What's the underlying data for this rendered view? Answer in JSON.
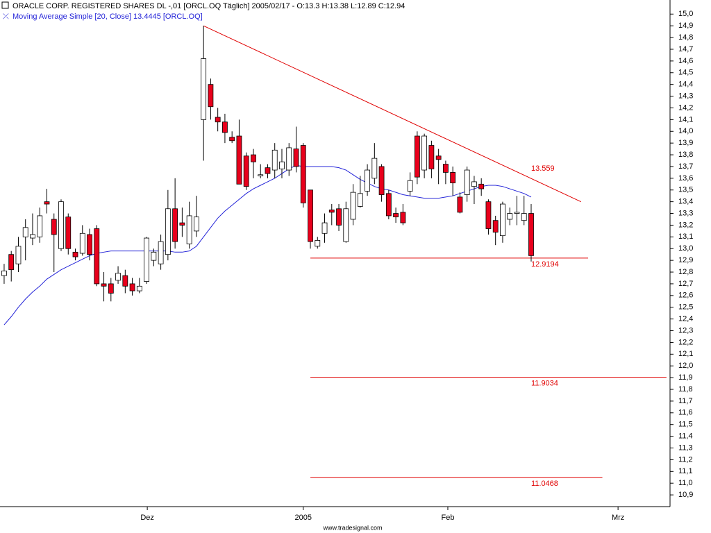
{
  "chart_data": {
    "type": "candlestick",
    "title": "ORACLE CORP. REGISTERED SHARES DL -,01 [ORCL.OQ  Täglich] 2005/02/17 - O:13.3 H:13.38 L:12.89 C:12.94",
    "footer": "www.tradesignal.com",
    "up_color": "#ffffff",
    "down_color": "#e8001c",
    "open": [
      12.77,
      12.95,
      12.87,
      13.1,
      13.09,
      13.1,
      13.4,
      13.25,
      13.0,
      13.27,
      12.97,
      12.96,
      13.12,
      13.17,
      12.7,
      12.7,
      12.73,
      12.77,
      12.7,
      12.64,
      12.72,
      12.9,
      12.87,
      12.95,
      13.34,
      13.22,
      13.04,
      13.15,
      14.1,
      14.4,
      14.12,
      14.08,
      13.95,
      13.96,
      13.79,
      13.8,
      13.62,
      13.69,
      13.67,
      13.68,
      13.67,
      13.85,
      13.88,
      13.5,
      13.02,
      13.13,
      13.33,
      13.34,
      13.06,
      13.25,
      13.36,
      13.49,
      13.6,
      13.7,
      13.47,
      13.3,
      13.31,
      13.49,
      13.96,
      13.67,
      13.88,
      13.79,
      13.72,
      13.65,
      13.44,
      13.46,
      13.53,
      13.55,
      13.4,
      13.24,
      13.11,
      13.25,
      13.3,
      13.24,
      13.3
    ],
    "high": [
      12.87,
      12.98,
      13.1,
      13.25,
      13.3,
      13.35,
      13.51,
      13.3,
      13.42,
      13.3,
      13.0,
      13.2,
      13.17,
      13.2,
      12.8,
      12.75,
      12.85,
      12.82,
      12.75,
      12.75,
      13.1,
      13.0,
      13.12,
      13.5,
      13.6,
      13.35,
      13.4,
      13.45,
      14.9,
      14.45,
      14.2,
      14.15,
      14.0,
      14.1,
      13.82,
      13.85,
      13.72,
      13.72,
      13.9,
      13.85,
      13.9,
      14.04,
      13.9,
      13.5,
      13.1,
      13.3,
      13.38,
      13.38,
      13.4,
      13.55,
      13.62,
      13.72,
      13.9,
      13.72,
      13.5,
      13.35,
      13.38,
      13.65,
      14.0,
      13.98,
      13.92,
      13.85,
      13.75,
      13.7,
      13.48,
      13.7,
      13.62,
      13.6,
      13.42,
      13.28,
      13.4,
      13.35,
      13.45,
      13.45,
      13.38
    ],
    "low": [
      12.7,
      12.72,
      12.8,
      12.9,
      13.03,
      13.05,
      13.3,
      12.8,
      12.98,
      12.95,
      12.9,
      12.94,
      12.9,
      12.68,
      12.55,
      12.55,
      12.7,
      12.62,
      12.6,
      12.62,
      12.7,
      12.85,
      12.82,
      12.9,
      13.0,
      13.1,
      13.0,
      13.1,
      13.75,
      14.1,
      14.0,
      13.9,
      13.9,
      13.55,
      13.5,
      13.6,
      13.6,
      13.6,
      13.6,
      13.6,
      13.62,
      13.65,
      13.35,
      13.0,
      13.0,
      13.05,
      13.2,
      13.15,
      13.05,
      13.2,
      13.35,
      13.45,
      13.55,
      13.4,
      13.25,
      13.22,
      13.2,
      13.45,
      13.55,
      13.6,
      13.6,
      13.55,
      13.55,
      13.45,
      13.3,
      13.4,
      13.38,
      13.45,
      13.12,
      13.03,
      13.05,
      13.2,
      13.2,
      13.2,
      12.89
    ],
    "close": [
      12.81,
      12.82,
      13.02,
      13.18,
      13.12,
      13.28,
      13.38,
      13.12,
      13.4,
      13.0,
      12.93,
      13.13,
      12.95,
      12.7,
      12.68,
      12.62,
      12.79,
      12.68,
      12.64,
      12.68,
      13.09,
      12.97,
      13.06,
      13.34,
      13.06,
      13.2,
      13.28,
      13.27,
      14.62,
      14.21,
      14.08,
      13.99,
      13.92,
      13.55,
      13.53,
      13.74,
      13.63,
      13.64,
      13.84,
      13.74,
      13.86,
      13.7,
      13.39,
      13.06,
      13.07,
      13.22,
      13.31,
      13.2,
      13.34,
      13.48,
      13.47,
      13.67,
      13.77,
      13.46,
      13.28,
      13.27,
      13.22,
      13.58,
      13.61,
      13.96,
      13.68,
      13.76,
      13.65,
      13.56,
      13.31,
      13.67,
      13.57,
      13.51,
      13.17,
      13.14,
      13.38,
      13.3,
      13.31,
      13.3,
      12.94
    ],
    "moving_average": {
      "name": "Moving Average Simple [20, Close] 13.4445 [ORCL.OQ]",
      "color": "#2424d8",
      "values": [
        12.35,
        12.42,
        12.5,
        12.57,
        12.63,
        12.68,
        12.74,
        12.78,
        12.82,
        12.85,
        12.88,
        12.91,
        12.94,
        12.96,
        12.97,
        12.98,
        12.98,
        12.98,
        12.98,
        12.98,
        12.98,
        12.98,
        12.98,
        12.98,
        12.97,
        12.97,
        12.98,
        13.02,
        13.1,
        13.18,
        13.26,
        13.32,
        13.37,
        13.42,
        13.47,
        13.51,
        13.54,
        13.57,
        13.6,
        13.64,
        13.68,
        13.71,
        13.7,
        13.7,
        13.7,
        13.7,
        13.7,
        13.69,
        13.67,
        13.63,
        13.59,
        13.56,
        13.53,
        13.51,
        13.5,
        13.48,
        13.46,
        13.45,
        13.44,
        13.43,
        13.43,
        13.43,
        13.44,
        13.45,
        13.47,
        13.49,
        13.51,
        13.53,
        13.54,
        13.54,
        13.53,
        13.51,
        13.49,
        13.47,
        13.44
      ]
    },
    "trend_line": {
      "x": [
        28,
        81
      ],
      "y": [
        14.9,
        13.4
      ],
      "label": 13.559,
      "color": "#e00000"
    },
    "levels": [
      {
        "value": 12.9194,
        "x": [
          43,
          82
        ],
        "color": "#e00000"
      },
      {
        "value": 11.9034,
        "x": [
          43,
          93
        ],
        "color": "#e00000"
      },
      {
        "value": 11.0468,
        "x": [
          43,
          84
        ],
        "color": "#e00000"
      }
    ],
    "xlim": [
      -0.58,
      93.5
    ],
    "xticks": [
      {
        "value": 20.1,
        "label": "Dez"
      },
      {
        "value": 42,
        "label": "2005"
      },
      {
        "value": 62.3,
        "label": "Feb"
      },
      {
        "value": 86.2,
        "label": "Mrz"
      }
    ],
    "ylim": [
      10.8,
      15.12
    ],
    "yticks": [
      {
        "value": 15.0,
        "label": "15,0"
      },
      {
        "value": 14.9,
        "label": "14,9"
      },
      {
        "value": 14.8,
        "label": "14,8"
      },
      {
        "value": 14.7,
        "label": "14,7"
      },
      {
        "value": 14.6,
        "label": "14,6"
      },
      {
        "value": 14.5,
        "label": "14,5"
      },
      {
        "value": 14.4,
        "label": "14,4"
      },
      {
        "value": 14.3,
        "label": "14,3"
      },
      {
        "value": 14.2,
        "label": "14,2"
      },
      {
        "value": 14.1,
        "label": "14,1"
      },
      {
        "value": 14.0,
        "label": "14,0"
      },
      {
        "value": 13.9,
        "label": "13,9"
      },
      {
        "value": 13.8,
        "label": "13,8"
      },
      {
        "value": 13.7,
        "label": "13,7"
      },
      {
        "value": 13.6,
        "label": "13,6"
      },
      {
        "value": 13.5,
        "label": "13,5"
      },
      {
        "value": 13.4,
        "label": "13,4"
      },
      {
        "value": 13.3,
        "label": "13,3"
      },
      {
        "value": 13.2,
        "label": "13,2"
      },
      {
        "value": 13.1,
        "label": "13,1"
      },
      {
        "value": 13.0,
        "label": "13,0"
      },
      {
        "value": 12.9,
        "label": "12,9"
      },
      {
        "value": 12.8,
        "label": "12,8"
      },
      {
        "value": 12.7,
        "label": "12,7"
      },
      {
        "value": 12.6,
        "label": "12,6"
      },
      {
        "value": 12.5,
        "label": "12,5"
      },
      {
        "value": 12.4,
        "label": "12,4"
      },
      {
        "value": 12.3,
        "label": "12,3"
      },
      {
        "value": 12.2,
        "label": "12,2"
      },
      {
        "value": 12.1,
        "label": "12,1"
      },
      {
        "value": 12.0,
        "label": "12,0"
      },
      {
        "value": 11.9,
        "label": "11,9"
      },
      {
        "value": 11.8,
        "label": "11,8"
      },
      {
        "value": 11.7,
        "label": "11,7"
      },
      {
        "value": 11.6,
        "label": "11,6"
      },
      {
        "value": 11.5,
        "label": "11,5"
      },
      {
        "value": 11.4,
        "label": "11,4"
      },
      {
        "value": 11.3,
        "label": "11,3"
      },
      {
        "value": 11.2,
        "label": "11,2"
      },
      {
        "value": 11.1,
        "label": "11,1"
      },
      {
        "value": 11.0,
        "label": "11,0"
      },
      {
        "value": 10.9,
        "label": "10,9"
      }
    ]
  }
}
